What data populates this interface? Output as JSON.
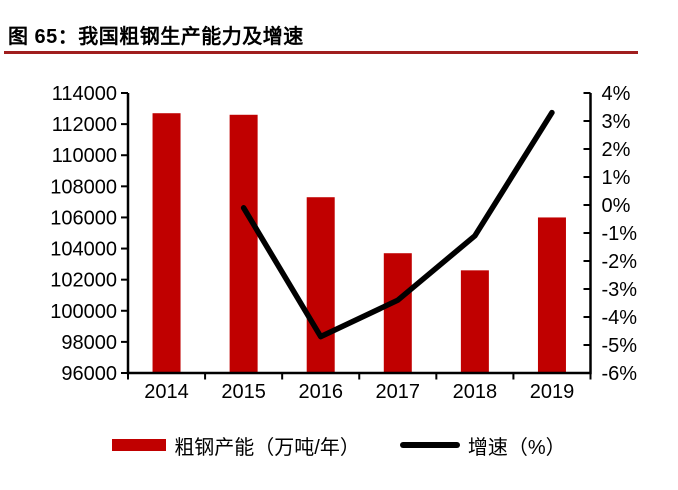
{
  "header": {
    "title": "图 65：我国粗钢生产能力及增速"
  },
  "colors": {
    "bar": "#c00000",
    "line": "#000000",
    "title_rule": "#a01e1e",
    "axis": "#000000",
    "text": "#000000",
    "background": "#ffffff"
  },
  "chart_data": {
    "type": "bar+line",
    "title": "图 65：我国粗钢生产能力及增速",
    "categories": [
      "2014",
      "2015",
      "2016",
      "2017",
      "2018",
      "2019"
    ],
    "series": [
      {
        "name": "粗钢产能（万吨/年）",
        "type": "bar",
        "axis": "left",
        "color": "#c00000",
        "values": [
          112700,
          112600,
          107300,
          103700,
          102600,
          106000
        ]
      },
      {
        "name": "增速（%）",
        "type": "line",
        "axis": "right",
        "color": "#000000",
        "values": [
          null,
          -0.1,
          -4.7,
          -3.4,
          -1.1,
          3.3
        ]
      }
    ],
    "left_axis": {
      "min": 96000,
      "max": 114000,
      "step": 2000,
      "tick_labels": [
        "114000",
        "112000",
        "110000",
        "108000",
        "106000",
        "104000",
        "102000",
        "100000",
        "98000",
        "96000"
      ]
    },
    "right_axis": {
      "min": -6,
      "max": 4,
      "step": 1,
      "tick_labels": [
        "4%",
        "3%",
        "2%",
        "1%",
        "0%",
        "-1%",
        "-2%",
        "-3%",
        "-4%",
        "-5%",
        "-6%"
      ]
    },
    "grid": false,
    "legend": {
      "position": "bottom",
      "items": [
        {
          "label": "粗钢产能（万吨/年）",
          "swatch": "bar",
          "color": "#c00000"
        },
        {
          "label": "增速（%）",
          "swatch": "line",
          "color": "#000000"
        }
      ]
    }
  }
}
